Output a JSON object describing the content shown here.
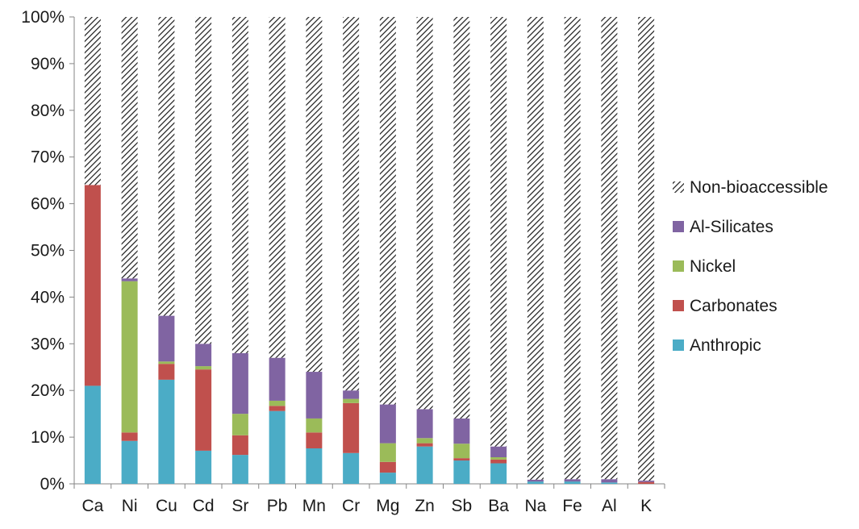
{
  "chart_data": {
    "type": "bar",
    "stacked": true,
    "percent": true,
    "title": "",
    "xlabel": "",
    "ylabel": "",
    "ylim": [
      0,
      100
    ],
    "ytick_labels": [
      "0%",
      "10%",
      "20%",
      "30%",
      "40%",
      "50%",
      "60%",
      "70%",
      "80%",
      "90%",
      "100%"
    ],
    "categories": [
      "Ca",
      "Ni",
      "Cu",
      "Cd",
      "Sr",
      "Pb",
      "Mn",
      "Cr",
      "Mg",
      "Zn",
      "Sb",
      "Ba",
      "Na",
      "Fe",
      "Al",
      "K"
    ],
    "series": [
      {
        "name": "Anthropic",
        "color": "#4bacc6",
        "pattern": "none",
        "values": [
          21,
          9.2,
          22.3,
          7.1,
          6.2,
          15.6,
          7.6,
          6.6,
          2.4,
          8.0,
          5.0,
          4.4,
          0.5,
          0.5,
          0.3,
          0.0
        ]
      },
      {
        "name": "Carbonates",
        "color": "#c0504d",
        "pattern": "none",
        "values": [
          43,
          1.8,
          3.4,
          17.4,
          4.2,
          1.1,
          3.4,
          10.7,
          2.3,
          0.7,
          0.5,
          0.8,
          0.0,
          0.0,
          0.0,
          0.4
        ]
      },
      {
        "name": "Nickel",
        "color": "#9bbb59",
        "pattern": "none",
        "values": [
          0.0,
          32.4,
          0.5,
          0.7,
          4.6,
          1.1,
          3.0,
          0.9,
          4.0,
          1.1,
          3.1,
          0.5,
          0.0,
          0.0,
          0.0,
          0.0
        ]
      },
      {
        "name": "Al-Silicates",
        "color": "#8064a2",
        "pattern": "none",
        "values": [
          0.0,
          0.6,
          9.8,
          4.8,
          13.0,
          9.2,
          10.0,
          1.8,
          8.3,
          6.2,
          5.4,
          2.3,
          0.4,
          0.5,
          0.7,
          0.3
        ]
      },
      {
        "name": "Non-bioaccessible",
        "color": "#111111",
        "pattern": "diagonal-hatch",
        "values": [
          36,
          56,
          64,
          70,
          72,
          73,
          76,
          80,
          83,
          84,
          86,
          92,
          99.1,
          99,
          99,
          99.3
        ]
      }
    ],
    "legend_order": [
      "Non-bioaccessible",
      "Al-Silicates",
      "Nickel",
      "Carbonates",
      "Anthropic"
    ],
    "legend_position": "right",
    "grid": false
  }
}
